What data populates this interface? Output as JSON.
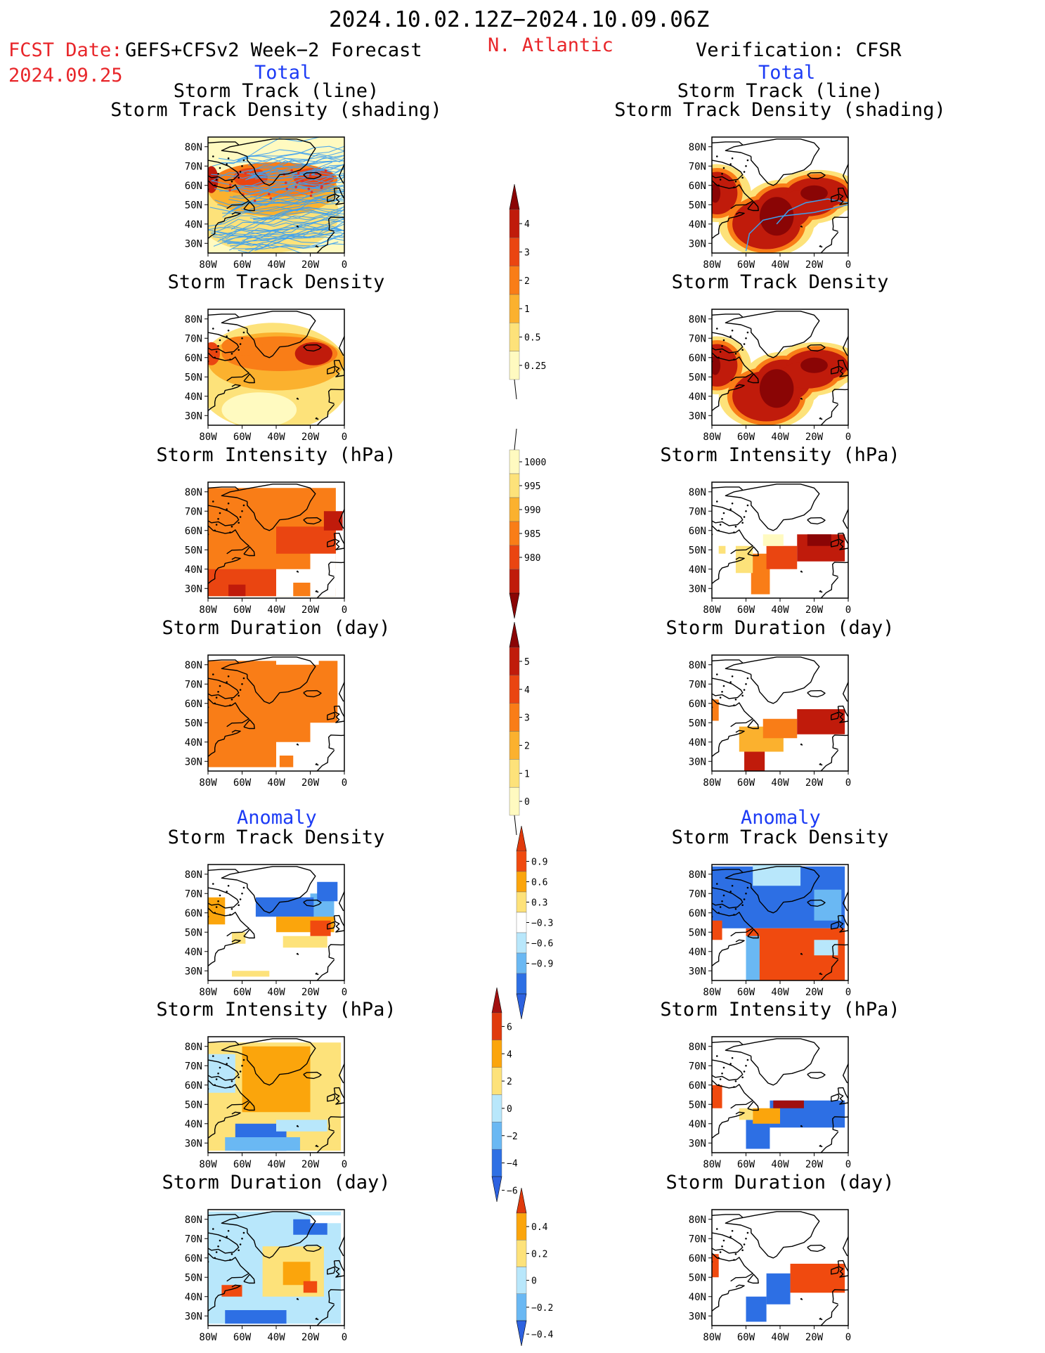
{
  "header": {
    "date_range": "2024.10.02.12Z−2024.10.09.06Z",
    "fcst_label": "FCST Date:",
    "fcst_model": "GEFS+CFSv2 Week−2 Forecast",
    "fcst_date": "2024.09.25",
    "region": "N. Atlantic",
    "verification": "Verification: CFSR",
    "total_left": "Total",
    "total_right": "Total",
    "anomaly_left": "Anomaly",
    "anomaly_right": "Anomaly"
  },
  "colors": {
    "title_red": "#e8262a",
    "section_blue": "#1c3bf5",
    "track_line": "#3ea0ee",
    "total_scale": [
      "#fffac0",
      "#fde27a",
      "#fbb12e",
      "#f97d17",
      "#ea4511",
      "#c01b0b",
      "#8a0505"
    ],
    "anom_positive": [
      "#fde27a",
      "#fba50c",
      "#f04a0f"
    ],
    "anom_negative": [
      "#b8e7fb",
      "#6ab8f3",
      "#2d6fe4"
    ]
  },
  "chart_data": [
    {
      "type": "heatmap",
      "panel": "forecast",
      "title_lines": [
        "Storm Track (line)",
        "Storm Track Density (shading)"
      ],
      "x_ticks": [
        "80W",
        "60W",
        "40W",
        "20W",
        "0"
      ],
      "y_ticks": [
        "80N",
        "70N",
        "60N",
        "50N",
        "40N",
        "30N"
      ],
      "xlim": [
        -80,
        0
      ],
      "ylim": [
        25,
        85
      ]
    },
    {
      "type": "heatmap",
      "panel": "verification",
      "title_lines": [
        "Storm Track (line)",
        "Storm Track Density (shading)"
      ],
      "x_ticks": [
        "80W",
        "60W",
        "40W",
        "20W",
        "0"
      ],
      "y_ticks": [
        "80N",
        "70N",
        "60N",
        "50N",
        "40N",
        "30N"
      ],
      "xlim": [
        -80,
        0
      ],
      "ylim": [
        25,
        85
      ]
    },
    {
      "type": "heatmap",
      "panel": "forecast",
      "title_lines": [
        "Storm Track Density"
      ],
      "x_ticks": [
        "80W",
        "60W",
        "40W",
        "20W",
        "0"
      ],
      "y_ticks": [
        "80N",
        "70N",
        "60N",
        "50N",
        "40N",
        "30N"
      ]
    },
    {
      "type": "heatmap",
      "panel": "verification",
      "title_lines": [
        "Storm Track Density"
      ],
      "x_ticks": [
        "80W",
        "60W",
        "40W",
        "20W",
        "0"
      ],
      "y_ticks": [
        "80N",
        "70N",
        "60N",
        "50N",
        "40N",
        "30N"
      ]
    },
    {
      "type": "heatmap",
      "panel": "forecast",
      "title_lines": [
        "Storm Intensity (hPa)"
      ],
      "x_ticks": [
        "80W",
        "60W",
        "40W",
        "20W",
        "0"
      ],
      "y_ticks": [
        "80N",
        "70N",
        "60N",
        "50N",
        "40N",
        "30N"
      ]
    },
    {
      "type": "heatmap",
      "panel": "verification",
      "title_lines": [
        "Storm Intensity (hPa)"
      ],
      "x_ticks": [
        "80W",
        "60W",
        "40W",
        "20W",
        "0"
      ],
      "y_ticks": [
        "80N",
        "70N",
        "60N",
        "50N",
        "40N",
        "30N"
      ]
    },
    {
      "type": "heatmap",
      "panel": "forecast",
      "title_lines": [
        "Storm Duration (day)"
      ],
      "x_ticks": [
        "80W",
        "60W",
        "40W",
        "20W",
        "0"
      ],
      "y_ticks": [
        "80N",
        "70N",
        "60N",
        "50N",
        "40N",
        "30N"
      ]
    },
    {
      "type": "heatmap",
      "panel": "verification",
      "title_lines": [
        "Storm Duration (day)"
      ],
      "x_ticks": [
        "80W",
        "60W",
        "40W",
        "20W",
        "0"
      ],
      "y_ticks": [
        "80N",
        "70N",
        "60N",
        "50N",
        "40N",
        "30N"
      ]
    },
    {
      "type": "heatmap",
      "panel": "forecast anomaly",
      "title_lines": [
        "Storm Track Density"
      ],
      "x_ticks": [
        "80W",
        "60W",
        "40W",
        "20W",
        "0"
      ],
      "y_ticks": [
        "80N",
        "70N",
        "60N",
        "50N",
        "40N",
        "30N"
      ]
    },
    {
      "type": "heatmap",
      "panel": "verification anomaly",
      "title_lines": [
        "Storm Track Density"
      ],
      "x_ticks": [
        "80W",
        "60W",
        "40W",
        "20W",
        "0"
      ],
      "y_ticks": [
        "80N",
        "70N",
        "60N",
        "50N",
        "40N",
        "30N"
      ]
    },
    {
      "type": "heatmap",
      "panel": "forecast anomaly",
      "title_lines": [
        "Storm Intensity (hPa)"
      ],
      "x_ticks": [
        "80W",
        "60W",
        "40W",
        "20W",
        "0"
      ],
      "y_ticks": [
        "80N",
        "70N",
        "60N",
        "50N",
        "40N",
        "30N"
      ]
    },
    {
      "type": "heatmap",
      "panel": "verification anomaly",
      "title_lines": [
        "Storm Intensity (hPa)"
      ],
      "x_ticks": [
        "80W",
        "60W",
        "40W",
        "20W",
        "0"
      ],
      "y_ticks": [
        "80N",
        "70N",
        "60N",
        "50N",
        "40N",
        "30N"
      ]
    },
    {
      "type": "heatmap",
      "panel": "forecast anomaly",
      "title_lines": [
        "Storm Duration (day)"
      ],
      "x_ticks": [
        "80W",
        "60W",
        "40W",
        "20W",
        "0"
      ],
      "y_ticks": [
        "80N",
        "70N",
        "60N",
        "50N",
        "40N",
        "30N"
      ]
    },
    {
      "type": "heatmap",
      "panel": "verification anomaly",
      "title_lines": [
        "Storm Duration (day)"
      ],
      "x_ticks": [
        "80W",
        "60W",
        "40W",
        "20W",
        "0"
      ],
      "y_ticks": [
        "80N",
        "70N",
        "60N",
        "50N",
        "40N",
        "30N"
      ]
    }
  ],
  "colorbars": [
    {
      "name": "track-density",
      "labels": [
        "4",
        "3",
        "2",
        "1",
        "0.5",
        "0.25"
      ],
      "arrow_top": true,
      "arrow_bottom": false
    },
    {
      "name": "intensity",
      "labels": [
        "1000",
        "995",
        "990",
        "985",
        "980"
      ],
      "arrow_top": false,
      "arrow_bottom": true
    },
    {
      "name": "duration",
      "labels": [
        "5",
        "4",
        "3",
        "2",
        "1",
        "0"
      ],
      "arrow_top": true,
      "arrow_bottom": false
    },
    {
      "name": "anom-track-density",
      "labels": [
        "0.9",
        "0.6",
        "0.3",
        "−0.3",
        "−0.6",
        "−0.9"
      ],
      "arrow_top": true,
      "arrow_bottom": true
    },
    {
      "name": "anom-intensity",
      "labels": [
        "6",
        "4",
        "2",
        "0",
        "−2",
        "−4",
        "−6"
      ],
      "arrow_top": true,
      "arrow_bottom": true
    },
    {
      "name": "anom-duration",
      "labels": [
        "0.4",
        "0.2",
        "0",
        "−0.2",
        "−0.4"
      ],
      "arrow_top": true,
      "arrow_bottom": true
    }
  ]
}
